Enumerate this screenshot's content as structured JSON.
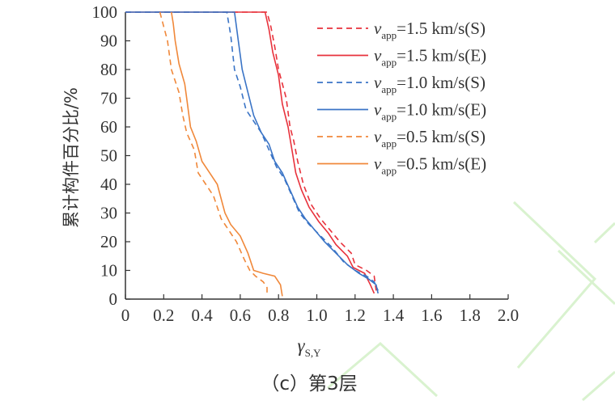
{
  "chart_data": {
    "type": "line",
    "subtitle": "（c）第3层",
    "xlabel": "γS,Y",
    "xlabel_main": "γ",
    "xlabel_sub": "S,Y",
    "ylabel": "累计构件百分比/%",
    "xlim": [
      0,
      2.0
    ],
    "ylim": [
      0,
      100
    ],
    "xticks": [
      "0",
      "0.2",
      "0.4",
      "0.6",
      "0.8",
      "1.0",
      "1.2",
      "1.4",
      "1.6",
      "1.8",
      "2.0"
    ],
    "yticks": [
      "0",
      "10",
      "20",
      "30",
      "40",
      "50",
      "60",
      "70",
      "80",
      "90",
      "100"
    ],
    "legend_position": "top-right",
    "series": [
      {
        "name": "vapp=1.5 km/s(S)",
        "legend_v": "v",
        "legend_sub": "app",
        "legend_rest": "=1.5 km/s(S)",
        "color": "#e8323c",
        "dash": "dashed",
        "x": [
          0.0,
          0.74,
          0.76,
          0.78,
          0.8,
          0.84,
          0.86,
          0.88,
          0.9,
          0.93,
          0.97,
          1.02,
          1.07,
          1.12,
          1.18,
          1.2,
          1.26,
          1.3,
          1.31
        ],
        "y": [
          100,
          100,
          95,
          88,
          80,
          70,
          60,
          55,
          48,
          40,
          33,
          28,
          24,
          20,
          16,
          12,
          10,
          8,
          3
        ]
      },
      {
        "name": "vapp=1.5 km/s(E)",
        "legend_v": "v",
        "legend_sub": "app",
        "legend_rest": "=1.5 km/s(E)",
        "color": "#e8323c",
        "dash": "solid",
        "x": [
          0.0,
          0.73,
          0.75,
          0.77,
          0.8,
          0.82,
          0.85,
          0.87,
          0.89,
          0.92,
          0.96,
          1.01,
          1.06,
          1.1,
          1.16,
          1.19,
          1.25,
          1.28,
          1.3
        ],
        "y": [
          100,
          100,
          94,
          86,
          78,
          68,
          60,
          52,
          44,
          38,
          32,
          27,
          23,
          19,
          15,
          11,
          9,
          5,
          2
        ]
      },
      {
        "name": "vapp=1.0 km/s(S)",
        "legend_v": "v",
        "legend_sub": "app",
        "legend_rest": "=1.0 km/s(S)",
        "color": "#3a74c6",
        "dash": "dashed",
        "x": [
          0.0,
          0.53,
          0.55,
          0.57,
          0.6,
          0.63,
          0.67,
          0.71,
          0.75,
          0.79,
          0.83,
          0.87,
          0.91,
          0.96,
          1.02,
          1.08,
          1.14,
          1.2,
          1.26,
          1.3,
          1.32
        ],
        "y": [
          100,
          100,
          92,
          80,
          74,
          66,
          62,
          58,
          52,
          46,
          42,
          36,
          30,
          26,
          22,
          18,
          13,
          10,
          8,
          6,
          3
        ]
      },
      {
        "name": "vapp=1.0 km/s(E)",
        "legend_v": "v",
        "legend_sub": "app",
        "legend_rest": "=1.0 km/s(E)",
        "color": "#3a74c6",
        "dash": "solid",
        "x": [
          0.0,
          0.57,
          0.59,
          0.61,
          0.64,
          0.67,
          0.71,
          0.75,
          0.78,
          0.82,
          0.86,
          0.9,
          0.94,
          0.99,
          1.04,
          1.1,
          1.16,
          1.22,
          1.27,
          1.31,
          1.32
        ],
        "y": [
          100,
          100,
          90,
          80,
          72,
          64,
          58,
          54,
          48,
          44,
          38,
          32,
          28,
          24,
          20,
          16,
          12,
          9,
          7,
          5,
          2
        ]
      },
      {
        "name": "vapp=0.5 km/s(S)",
        "legend_v": "v",
        "legend_sub": "app",
        "legend_rest": "=0.5 km/s(S)",
        "color": "#f0883a",
        "dash": "dashed",
        "x": [
          0.18,
          0.18,
          0.2,
          0.22,
          0.24,
          0.28,
          0.3,
          0.32,
          0.36,
          0.38,
          0.42,
          0.46,
          0.5,
          0.54,
          0.58,
          0.62,
          0.65,
          0.68,
          0.72,
          0.74,
          0.74
        ],
        "y": [
          100,
          100,
          95,
          90,
          80,
          72,
          64,
          58,
          52,
          44,
          40,
          36,
          28,
          24,
          20,
          14,
          10,
          8,
          6,
          4,
          1
        ]
      },
      {
        "name": "vapp=0.5 km/s(E)",
        "legend_v": "v",
        "legend_sub": "app",
        "legend_rest": "=0.5 km/s(E)",
        "color": "#f0883a",
        "dash": "solid",
        "x": [
          0.24,
          0.24,
          0.25,
          0.26,
          0.28,
          0.31,
          0.32,
          0.34,
          0.37,
          0.4,
          0.44,
          0.48,
          0.52,
          0.55,
          0.6,
          0.64,
          0.67,
          0.72,
          0.78,
          0.81,
          0.82
        ],
        "y": [
          100,
          100,
          96,
          90,
          82,
          75,
          70,
          60,
          55,
          48,
          44,
          40,
          30,
          26,
          22,
          16,
          10,
          9,
          8,
          5,
          1
        ]
      }
    ]
  }
}
